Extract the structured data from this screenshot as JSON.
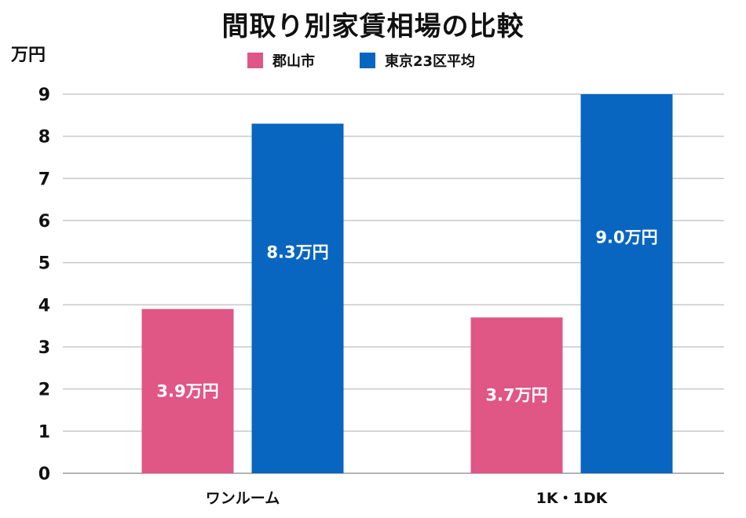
{
  "chart_data": {
    "type": "bar",
    "title": "間取り別家賃相場の比較",
    "ylabel": "万円",
    "ylim": [
      0,
      9
    ],
    "yticks": [
      0,
      1,
      2,
      3,
      4,
      5,
      6,
      7,
      8,
      9
    ],
    "categories": [
      "ワンルーム",
      "1K・1DK"
    ],
    "series": [
      {
        "name": "郡山市",
        "color": "#e05685",
        "values": [
          3.9,
          3.7
        ],
        "labels": [
          "3.9万円",
          "3.7万円"
        ]
      },
      {
        "name": "東京23区平均",
        "color": "#0866c0",
        "values": [
          8.3,
          9.0
        ],
        "labels": [
          "8.3万円",
          "9.0万円"
        ]
      }
    ],
    "grid": true,
    "legend_position": "top"
  }
}
